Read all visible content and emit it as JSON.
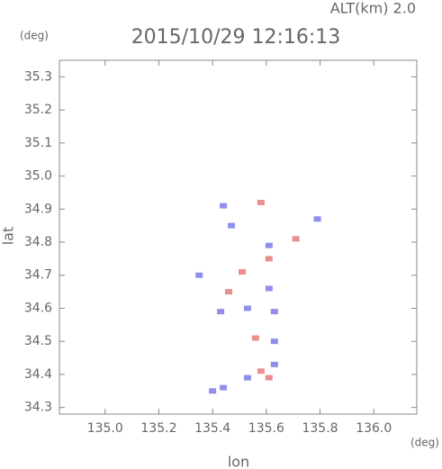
{
  "chart_data": {
    "type": "scatter",
    "title": "2015/10/29 12:16:13",
    "subtitle": "ALT(km) 2.0",
    "y_unit": "(deg)",
    "x_unit": "(deg)",
    "xlabel": "lon",
    "ylabel": "lat",
    "xlim": [
      134.83,
      136.16
    ],
    "ylim": [
      34.28,
      35.35
    ],
    "xticks": [
      {
        "value": 135.0,
        "label": "135.0"
      },
      135.2,
      135.4,
      135.6,
      135.8,
      {
        "value": 136.0,
        "label": "136.0"
      }
    ],
    "yticks": [
      34.3,
      34.4,
      34.5,
      34.6,
      34.7,
      34.8,
      34.9,
      {
        "value": 35.0,
        "label": "35.0"
      },
      35.1,
      35.2,
      35.3
    ],
    "x": [
      135.44,
      135.58,
      135.79,
      135.47,
      135.61,
      135.71,
      135.61,
      135.51,
      135.35,
      135.61,
      135.46,
      135.53,
      135.43,
      135.63,
      135.56,
      135.63,
      135.58,
      135.53,
      135.61,
      135.44,
      135.4,
      135.63
    ],
    "values": [
      34.91,
      34.92,
      34.87,
      34.85,
      34.79,
      34.81,
      34.75,
      34.71,
      34.7,
      34.66,
      34.65,
      34.6,
      34.59,
      34.59,
      34.51,
      34.5,
      34.41,
      34.39,
      34.39,
      34.36,
      34.35,
      34.43
    ],
    "point_colors": [
      "#7b7be8",
      "#e87a7a",
      "#7b7be8",
      "#7b7be8",
      "#7b7be8",
      "#e87a7a",
      "#e87a7a",
      "#e87a7a",
      "#7b7be8",
      "#7b7be8",
      "#e87a7a",
      "#7b7be8",
      "#7b7be8",
      "#7b7be8",
      "#e87a7a",
      "#7b7be8",
      "#e87a7a",
      "#7b7be8",
      "#e87a7a",
      "#7b7be8",
      "#7b7be8",
      "#7b7be8"
    ]
  }
}
